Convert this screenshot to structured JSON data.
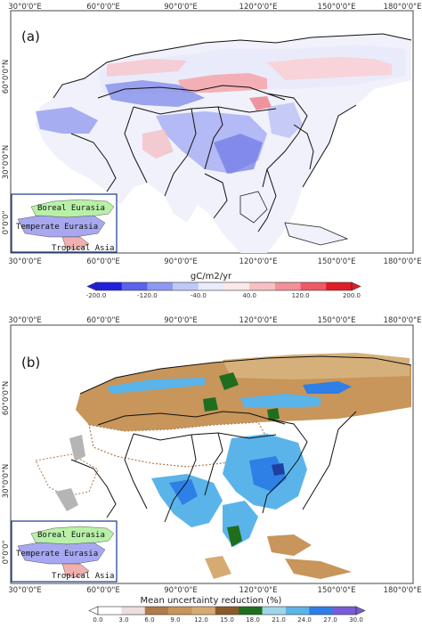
{
  "lon_ticks": [
    "30°0'0\"E",
    "60°0'0\"E",
    "90°0'0\"E",
    "120°0'0\"E",
    "150°0'0\"E",
    "180°0'0\"E"
  ],
  "lat_ticks": [
    "60°0'0\"N",
    "30°0'0\"N",
    "0°0'0\""
  ],
  "inset": {
    "regions": [
      "Boreal Eurasia",
      "Temperate Eurasia",
      "Tropical Asia"
    ],
    "colors": {
      "boreal": "#b8f0a8",
      "temperate": "#a8a8f0",
      "tropical": "#f0b0b0"
    }
  },
  "panel_a": {
    "label": "(a)",
    "colorbar": {
      "title": "gC/m2/yr",
      "ticks": [
        "-200.0",
        "-120.0",
        "-40.0",
        "40.0",
        "120.0",
        "200.0"
      ],
      "colors": [
        "#2020e0",
        "#5a62ee",
        "#8e98f4",
        "#c0c8f8",
        "#e8ecfc",
        "#fce8e8",
        "#f8c0c4",
        "#f4909a",
        "#ee5a66",
        "#e01c28"
      ]
    }
  },
  "panel_b": {
    "label": "(b)",
    "colorbar": {
      "title": "Mean uncertainty reduction (%)",
      "ticks": [
        "0.0",
        "3.0",
        "6.0",
        "9.0",
        "12.0",
        "15.0",
        "18.0",
        "21.0",
        "24.0",
        "27.0",
        "30.0"
      ],
      "colors": [
        "#ffffff",
        "#f0dede",
        "#b07a4a",
        "#c8955a",
        "#d6ab72",
        "#8c5a2a",
        "#1e6e1e",
        "#a0d6e8",
        "#5ab4ea",
        "#2e7fe6",
        "#7a5ad6"
      ]
    }
  }
}
